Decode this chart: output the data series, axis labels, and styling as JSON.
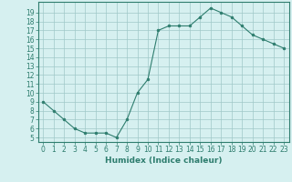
{
  "x": [
    0,
    1,
    2,
    3,
    4,
    5,
    6,
    7,
    8,
    9,
    10,
    11,
    12,
    13,
    14,
    15,
    16,
    17,
    18,
    19,
    20,
    21,
    22,
    23
  ],
  "y": [
    9.0,
    8.0,
    7.0,
    6.0,
    5.5,
    5.5,
    5.5,
    5.0,
    7.0,
    10.0,
    11.5,
    17.0,
    17.5,
    17.5,
    17.5,
    18.5,
    19.5,
    19.0,
    18.5,
    17.5,
    16.5,
    16.0,
    15.5,
    15.0
  ],
  "xlabel": "Humidex (Indice chaleur)",
  "xlim": [
    -0.5,
    23.5
  ],
  "ylim": [
    4.5,
    20.2
  ],
  "yticks": [
    5,
    6,
    7,
    8,
    9,
    10,
    11,
    12,
    13,
    14,
    15,
    16,
    17,
    18,
    19
  ],
  "xticks": [
    0,
    1,
    2,
    3,
    4,
    5,
    6,
    7,
    8,
    9,
    10,
    11,
    12,
    13,
    14,
    15,
    16,
    17,
    18,
    19,
    20,
    21,
    22,
    23
  ],
  "line_color": "#2e7d6e",
  "marker_color": "#2e7d6e",
  "bg_color": "#d6f0f0",
  "grid_color": "#a0c8c8",
  "tick_label_fontsize": 5.5,
  "xlabel_fontsize": 6.5
}
